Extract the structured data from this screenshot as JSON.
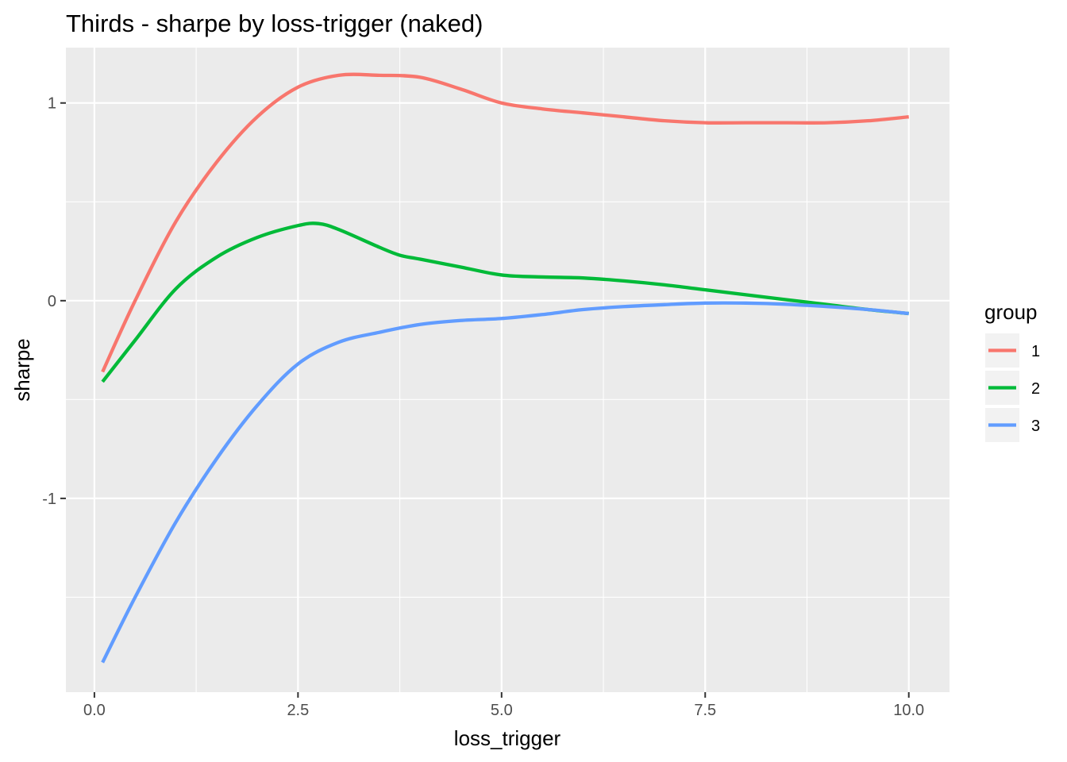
{
  "chart_data": {
    "type": "line",
    "title": "Thirds - sharpe by loss-trigger (naked)",
    "xlabel": "loss_trigger",
    "ylabel": "sharpe",
    "xlim": [
      -0.35,
      10.5
    ],
    "ylim": [
      -1.98,
      1.28
    ],
    "x_ticks": [
      0.0,
      2.5,
      5.0,
      7.5,
      10.0
    ],
    "x_tick_labels": [
      "0.0",
      "2.5",
      "5.0",
      "7.5",
      "10.0"
    ],
    "y_ticks": [
      -1,
      0,
      1
    ],
    "y_tick_labels": [
      "-1",
      "0",
      "1"
    ],
    "grid": true,
    "legend": {
      "title": "group",
      "position": "right"
    },
    "series": [
      {
        "name": "1",
        "color": "#F8766D",
        "points": [
          [
            0.1,
            -0.36
          ],
          [
            0.5,
            0.0
          ],
          [
            1.0,
            0.4
          ],
          [
            1.5,
            0.7
          ],
          [
            2.0,
            0.93
          ],
          [
            2.5,
            1.08
          ],
          [
            3.0,
            1.14
          ],
          [
            3.5,
            1.14
          ],
          [
            4.0,
            1.13
          ],
          [
            4.5,
            1.07
          ],
          [
            5.0,
            1.0
          ],
          [
            5.5,
            0.97
          ],
          [
            6.0,
            0.95
          ],
          [
            6.5,
            0.93
          ],
          [
            7.0,
            0.91
          ],
          [
            7.5,
            0.9
          ],
          [
            8.0,
            0.9
          ],
          [
            8.5,
            0.9
          ],
          [
            9.0,
            0.9
          ],
          [
            9.5,
            0.91
          ],
          [
            10.0,
            0.93
          ]
        ]
      },
      {
        "name": "2",
        "color": "#00BA38",
        "points": [
          [
            0.1,
            -0.41
          ],
          [
            0.5,
            -0.2
          ],
          [
            1.0,
            0.06
          ],
          [
            1.5,
            0.22
          ],
          [
            2.0,
            0.32
          ],
          [
            2.5,
            0.38
          ],
          [
            2.75,
            0.39
          ],
          [
            3.0,
            0.36
          ],
          [
            3.5,
            0.27
          ],
          [
            3.75,
            0.23
          ],
          [
            4.0,
            0.21
          ],
          [
            4.5,
            0.17
          ],
          [
            5.0,
            0.13
          ],
          [
            5.5,
            0.12
          ],
          [
            6.0,
            0.115
          ],
          [
            6.5,
            0.1
          ],
          [
            7.0,
            0.08
          ],
          [
            7.5,
            0.055
          ],
          [
            8.0,
            0.03
          ],
          [
            8.5,
            0.005
          ],
          [
            9.0,
            -0.02
          ],
          [
            9.5,
            -0.045
          ],
          [
            10.0,
            -0.065
          ]
        ]
      },
      {
        "name": "3",
        "color": "#619CFF",
        "points": [
          [
            0.1,
            -1.83
          ],
          [
            0.5,
            -1.5
          ],
          [
            1.0,
            -1.12
          ],
          [
            1.5,
            -0.8
          ],
          [
            2.0,
            -0.53
          ],
          [
            2.5,
            -0.32
          ],
          [
            3.0,
            -0.21
          ],
          [
            3.5,
            -0.16
          ],
          [
            4.0,
            -0.12
          ],
          [
            4.5,
            -0.1
          ],
          [
            5.0,
            -0.09
          ],
          [
            5.5,
            -0.07
          ],
          [
            6.0,
            -0.045
          ],
          [
            6.5,
            -0.03
          ],
          [
            7.0,
            -0.02
          ],
          [
            7.5,
            -0.012
          ],
          [
            8.0,
            -0.012
          ],
          [
            8.5,
            -0.018
          ],
          [
            9.0,
            -0.03
          ],
          [
            9.5,
            -0.045
          ],
          [
            10.0,
            -0.065
          ]
        ]
      }
    ]
  }
}
